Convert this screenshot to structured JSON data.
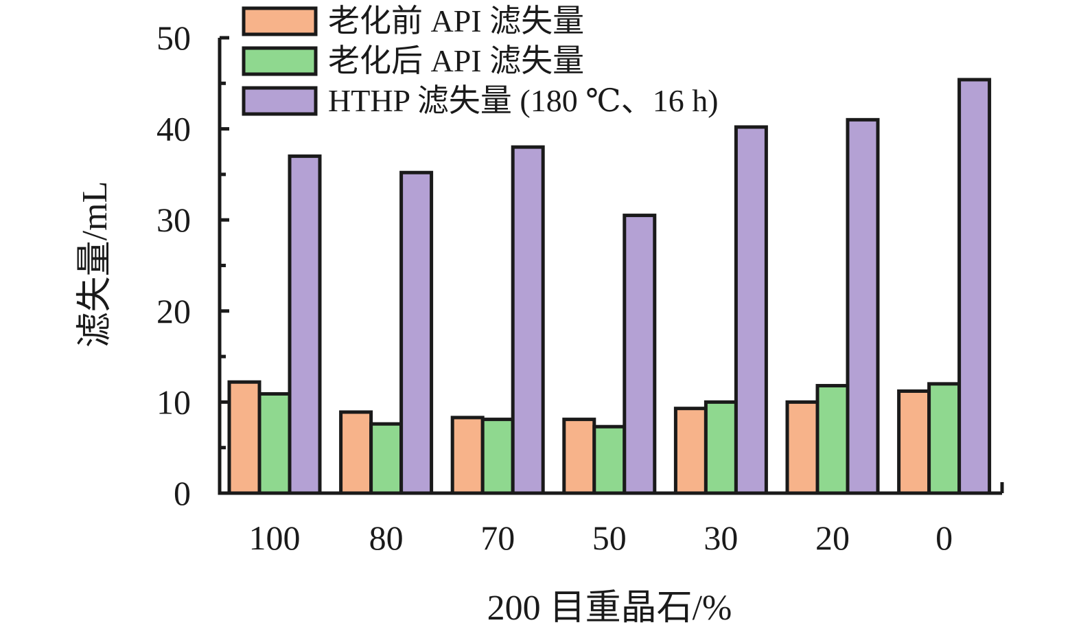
{
  "chart_data": {
    "type": "bar",
    "title": "",
    "xlabel": "200 目重晶石/%",
    "ylabel": "滤失量/mL",
    "ylim": [
      0,
      50
    ],
    "yticks": [
      "0",
      "10",
      "20",
      "30",
      "40",
      "50"
    ],
    "categories": [
      "100",
      "80",
      "70",
      "50",
      "30",
      "20",
      "0"
    ],
    "series": [
      {
        "name": "老化前 API 滤失量",
        "color": "#f7b38a",
        "values": [
          12.2,
          8.9,
          8.3,
          8.1,
          9.3,
          10.0,
          11.2
        ]
      },
      {
        "name": "老化后 API 滤失量",
        "color": "#8fd88f",
        "values": [
          10.9,
          7.6,
          8.1,
          7.3,
          10.0,
          11.8,
          12.0
        ]
      },
      {
        "name": "HTHP 滤失量 (180 ℃、16 h)",
        "color": "#b4a1d4",
        "values": [
          37.0,
          35.2,
          38.0,
          30.5,
          40.2,
          41.0,
          45.4
        ]
      }
    ],
    "legend_position": "top-left",
    "grid": false
  }
}
